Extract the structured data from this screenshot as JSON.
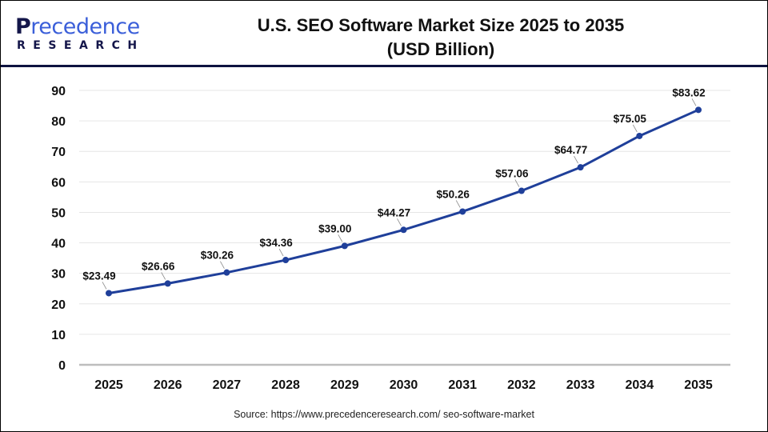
{
  "logo": {
    "main_first": "P",
    "main_rest": "recedence",
    "sub": "RESEARCH"
  },
  "header": {
    "title_line1": "U.S. SEO Software Market Size 2025 to 2035",
    "title_line2": "(USD Billion)"
  },
  "source": "Source: https://www.precedenceresearch.com/ seo-software-market",
  "colors": {
    "line": "#1f3f9a",
    "grid": "#e6e6e6",
    "axis": "#bdbdbd",
    "header_rule": "#0e1240"
  },
  "chart_data": {
    "type": "line",
    "title": "U.S. SEO Software Market Size 2025 to 2035 (USD Billion)",
    "categories": [
      "2025",
      "2026",
      "2027",
      "2028",
      "2029",
      "2030",
      "2031",
      "2032",
      "2033",
      "2034",
      "2035"
    ],
    "values": [
      23.49,
      26.66,
      30.26,
      34.36,
      39.0,
      44.27,
      50.26,
      57.06,
      64.77,
      75.05,
      83.62
    ],
    "data_labels": [
      "$23.49",
      "$26.66",
      "$30.26",
      "$34.36",
      "$39.00",
      "$44.27",
      "$50.26",
      "$57.06",
      "$64.77",
      "$75.05",
      "$83.62"
    ],
    "ylim": [
      0,
      90
    ],
    "yticks": [
      "0",
      "10",
      "20",
      "30",
      "40",
      "50",
      "60",
      "70",
      "80",
      "90"
    ],
    "grid": true,
    "legend": "none"
  }
}
